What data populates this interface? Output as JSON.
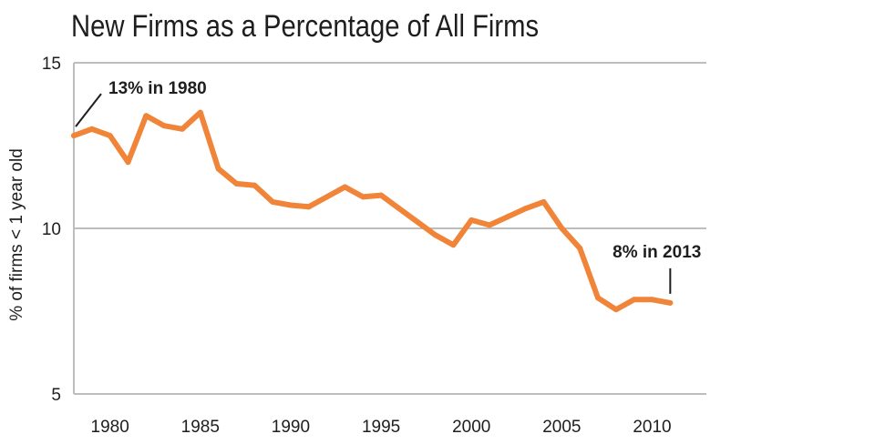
{
  "chart_data": {
    "type": "line",
    "title": "New Firms as a Percentage of All Firms",
    "xlabel": "",
    "ylabel": "% of firms < 1 year old",
    "xlim": [
      1978,
      2013
    ],
    "ylim": [
      5,
      15
    ],
    "x_ticks": [
      1980,
      1985,
      1990,
      1995,
      2000,
      2005,
      2010
    ],
    "y_ticks": [
      5,
      10,
      15
    ],
    "grid": "horizontal",
    "colors": {
      "series": "#f08439",
      "text": "#1e1e1e",
      "grid": "#bdbdbd"
    },
    "series": [
      {
        "x": [
          1978,
          1979,
          1980,
          1981,
          1982,
          1983,
          1984,
          1985,
          1986,
          1987,
          1988,
          1989,
          1990,
          1991,
          1992,
          1993,
          1994,
          1995,
          1996,
          1997,
          1998,
          1999,
          2000,
          2001,
          2002,
          2003,
          2004,
          2005,
          2006,
          2007,
          2008,
          2009,
          2010,
          2011
        ],
        "y": [
          12.8,
          13.0,
          12.8,
          12.0,
          13.4,
          13.1,
          13.0,
          13.5,
          11.8,
          11.35,
          11.3,
          10.8,
          10.7,
          10.65,
          10.95,
          11.25,
          10.95,
          11.0,
          10.6,
          10.2,
          9.8,
          9.5,
          10.25,
          10.1,
          10.35,
          10.6,
          10.8,
          10.0,
          9.4,
          7.9,
          7.55,
          7.85,
          7.85,
          7.75
        ]
      }
    ],
    "annotations": [
      {
        "text": "13% in 1980",
        "x": 1978,
        "y": 12.8
      },
      {
        "text": "8% in 2013",
        "x": 2011,
        "y": 7.75
      }
    ]
  }
}
